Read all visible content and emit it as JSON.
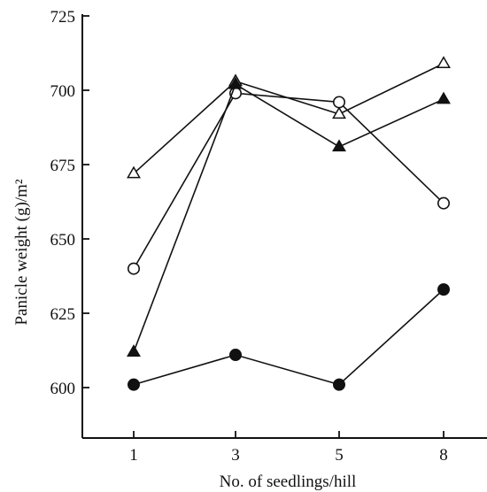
{
  "chart_data": {
    "type": "line",
    "xlabel": "No. of seedlings/hill",
    "ylabel": "Panicle weight (g)/m²",
    "categories": [
      "1",
      "3",
      "5",
      "8"
    ],
    "y_ticks": [
      600,
      625,
      650,
      675,
      700,
      725
    ],
    "ylim": [
      578,
      725
    ],
    "grid": false,
    "series": [
      {
        "marker": "open-triangle",
        "color": "#111111",
        "values": [
          672,
          703,
          692,
          709
        ]
      },
      {
        "marker": "open-circle",
        "color": "#111111",
        "values": [
          640,
          699,
          696,
          662
        ]
      },
      {
        "marker": "filled-triangle",
        "color": "#111111",
        "values": [
          612,
          702,
          681,
          697
        ]
      },
      {
        "marker": "filled-circle",
        "color": "#111111",
        "values": [
          601,
          611,
          601,
          633
        ]
      }
    ]
  }
}
